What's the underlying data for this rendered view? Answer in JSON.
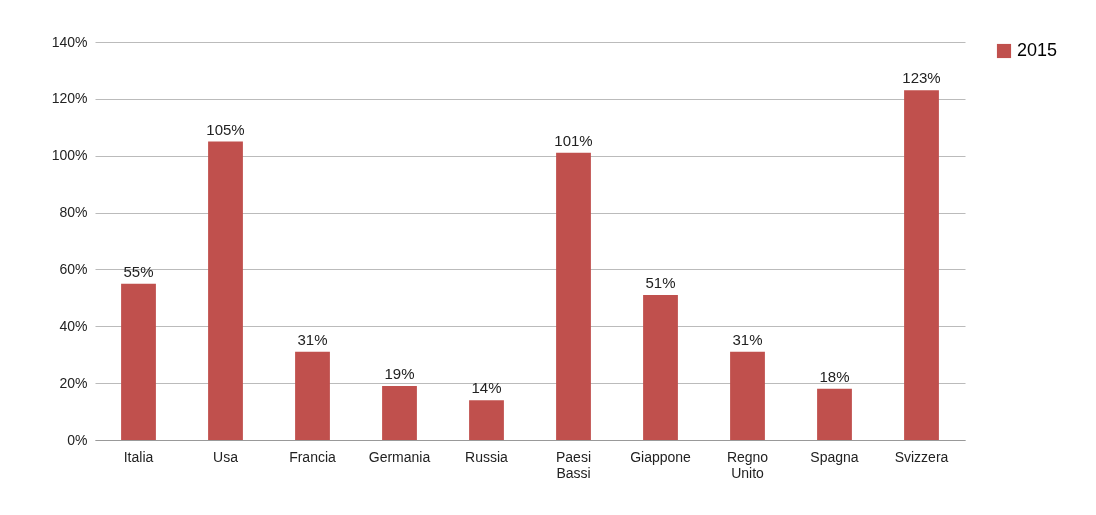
{
  "chart_data": {
    "type": "bar",
    "categories": [
      "Italia",
      "Usa",
      "Francia",
      "Germania",
      "Russia",
      "Paesi Bassi",
      "Giappone",
      "Regno Unito",
      "Spagna",
      "Svizzera"
    ],
    "series": [
      {
        "name": "2015",
        "color": "#c0504d",
        "values": [
          55,
          105,
          31,
          19,
          14,
          101,
          51,
          31,
          18,
          123
        ],
        "value_labels": [
          "55%",
          "105%",
          "31%",
          "19%",
          "14%",
          "101%",
          "51%",
          "31%",
          "18%",
          "123%"
        ]
      }
    ],
    "ylim": [
      0,
      140
    ],
    "yticks": [
      {
        "value": 0,
        "label": "0%"
      },
      {
        "value": 20,
        "label": "20%"
      },
      {
        "value": 40,
        "label": "40%"
      },
      {
        "value": 60,
        "label": "60%"
      },
      {
        "value": 80,
        "label": "80%"
      },
      {
        "value": 100,
        "label": "100%"
      },
      {
        "value": 120,
        "label": "120%"
      },
      {
        "value": 140,
        "label": "140%"
      }
    ],
    "grid": "y",
    "legend": "right"
  }
}
